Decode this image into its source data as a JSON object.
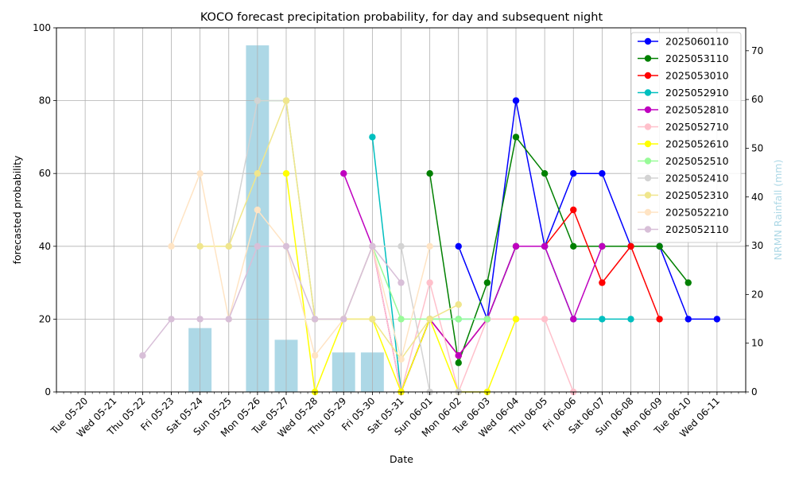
{
  "chart_data": {
    "type": "line",
    "title": "KOCO forecast precipitation probability, for day and subsequent night",
    "xlabel": "Date",
    "ylabel": "forecasted probability",
    "y2label": "NRMN Rainfall (mm)",
    "ylim": [
      0,
      100
    ],
    "y2lim": [
      0,
      74.7
    ],
    "yticks": [
      0,
      20,
      40,
      60,
      80,
      100
    ],
    "y2ticks": [
      0,
      10,
      20,
      30,
      40,
      50,
      60,
      70
    ],
    "x_range": [
      "2025-05-19",
      "2025-06-12"
    ],
    "x_ticks": [
      {
        "date": "2025-05-20",
        "label": "Tue 05-20"
      },
      {
        "date": "2025-05-21",
        "label": "Wed 05-21"
      },
      {
        "date": "2025-05-22",
        "label": "Thu 05-22"
      },
      {
        "date": "2025-05-23",
        "label": "Fri 05-23"
      },
      {
        "date": "2025-05-24",
        "label": "Sat 05-24"
      },
      {
        "date": "2025-05-25",
        "label": "Sun 05-25"
      },
      {
        "date": "2025-05-26",
        "label": "Mon 05-26"
      },
      {
        "date": "2025-05-27",
        "label": "Tue 05-27"
      },
      {
        "date": "2025-05-28",
        "label": "Wed 05-28"
      },
      {
        "date": "2025-05-29",
        "label": "Thu 05-29"
      },
      {
        "date": "2025-05-30",
        "label": "Fri 05-30"
      },
      {
        "date": "2025-05-31",
        "label": "Sat 05-31"
      },
      {
        "date": "2025-06-01",
        "label": "Sun 06-01"
      },
      {
        "date": "2025-06-02",
        "label": "Mon 06-02"
      },
      {
        "date": "2025-06-03",
        "label": "Tue 06-03"
      },
      {
        "date": "2025-06-04",
        "label": "Wed 06-04"
      },
      {
        "date": "2025-06-05",
        "label": "Thu 06-05"
      },
      {
        "date": "2025-06-06",
        "label": "Fri 06-06"
      },
      {
        "date": "2025-06-07",
        "label": "Sat 06-07"
      },
      {
        "date": "2025-06-08",
        "label": "Sun 06-08"
      },
      {
        "date": "2025-06-09",
        "label": "Mon 06-09"
      },
      {
        "date": "2025-06-10",
        "label": "Tue 06-10"
      },
      {
        "date": "2025-06-11",
        "label": "Wed 06-11"
      }
    ],
    "grid": true,
    "legend_position": "top-right",
    "rainfall_bars": {
      "color": "#add8e6",
      "dates": [
        "2025-05-24",
        "2025-05-26",
        "2025-05-27",
        "2025-05-29",
        "2025-05-30"
      ],
      "values": [
        13.1,
        71.1,
        10.7,
        8.1,
        8.1
      ]
    },
    "series": [
      {
        "name": "2025060110",
        "color": "#0000ff",
        "dates": [
          "2025-06-02",
          "2025-06-03",
          "2025-06-04",
          "2025-06-05",
          "2025-06-06",
          "2025-06-07",
          "2025-06-08",
          "2025-06-09",
          "2025-06-10",
          "2025-06-11"
        ],
        "values": [
          40,
          20,
          80,
          40,
          60,
          60,
          40,
          40,
          20,
          20
        ]
      },
      {
        "name": "2025053110",
        "color": "#008000",
        "dates": [
          "2025-06-01",
          "2025-06-02",
          "2025-06-03",
          "2025-06-04",
          "2025-06-05",
          "2025-06-06",
          "2025-06-07",
          "2025-06-08",
          "2025-06-09",
          "2025-06-10"
        ],
        "values": [
          60,
          8,
          30,
          70,
          60,
          40,
          40,
          40,
          40,
          30
        ]
      },
      {
        "name": "2025053010",
        "color": "#ff0000",
        "dates": [
          "2025-05-31",
          "2025-06-01",
          "2025-06-02",
          "2025-06-03",
          "2025-06-04",
          "2025-06-05",
          "2025-06-06",
          "2025-06-07",
          "2025-06-08",
          "2025-06-09"
        ],
        "values": [
          0,
          20,
          10,
          20,
          40,
          40,
          50,
          30,
          40,
          20
        ]
      },
      {
        "name": "2025052910",
        "color": "#00bfbf",
        "dates": [
          "2025-05-30",
          "2025-05-31",
          "2025-06-01",
          "2025-06-02",
          "2025-06-03",
          "2025-06-04",
          "2025-06-05",
          "2025-06-06",
          "2025-06-07",
          "2025-06-08"
        ],
        "values": [
          70,
          0,
          20,
          20,
          20,
          40,
          40,
          20,
          20,
          20
        ]
      },
      {
        "name": "2025052810",
        "color": "#bf00bf",
        "dates": [
          "2025-05-29",
          "2025-05-30",
          "2025-05-31",
          "2025-06-01",
          "2025-06-02",
          "2025-06-03",
          "2025-06-04",
          "2025-06-05",
          "2025-06-06",
          "2025-06-07"
        ],
        "values": [
          60,
          40,
          0,
          20,
          10,
          20,
          40,
          40,
          20,
          40
        ]
      },
      {
        "name": "2025052710",
        "color": "#ffc0cb",
        "dates": [
          "2025-05-28",
          "2025-05-29",
          "2025-05-30",
          "2025-05-31",
          "2025-06-01",
          "2025-06-02",
          "2025-06-03",
          "2025-06-04",
          "2025-06-05",
          "2025-06-06"
        ],
        "values": [
          20,
          20,
          40,
          0,
          30,
          0,
          20,
          20,
          20,
          0
        ]
      },
      {
        "name": "2025052610",
        "color": "#ffff00",
        "dates": [
          "2025-05-27",
          "2025-05-28",
          "2025-05-29",
          "2025-05-30",
          "2025-05-31",
          "2025-06-01",
          "2025-06-02",
          "2025-06-03",
          "2025-06-04"
        ],
        "values": [
          60,
          0,
          20,
          20,
          0,
          20,
          0,
          0,
          20
        ]
      },
      {
        "name": "2025052510",
        "color": "#98fb98",
        "dates": [
          "2025-05-26",
          "2025-05-27",
          "2025-05-28",
          "2025-05-29",
          "2025-05-30",
          "2025-05-31",
          "2025-06-01",
          "2025-06-02",
          "2025-06-03"
        ],
        "values": [
          80,
          80,
          20,
          20,
          40,
          20,
          20,
          20,
          20
        ]
      },
      {
        "name": "2025052410",
        "color": "#d3d3d3",
        "dates": [
          "2025-05-25",
          "2025-05-26",
          "2025-05-27",
          "2025-05-28",
          "2025-05-29",
          "2025-05-30",
          "2025-05-31",
          "2025-06-01",
          "2025-06-02"
        ],
        "values": [
          40,
          80,
          80,
          20,
          20,
          40,
          40,
          0,
          0
        ]
      },
      {
        "name": "2025052310",
        "color": "#f0e68c",
        "dates": [
          "2025-05-24",
          "2025-05-25",
          "2025-05-26",
          "2025-05-27",
          "2025-05-28",
          "2025-05-29",
          "2025-05-30",
          "2025-05-31",
          "2025-06-01",
          "2025-06-02"
        ],
        "values": [
          40,
          40,
          60,
          80,
          20,
          20,
          20,
          9,
          20,
          24
        ]
      },
      {
        "name": "2025052210",
        "color": "#ffe4c4",
        "dates": [
          "2025-05-23",
          "2025-05-24",
          "2025-05-25",
          "2025-05-26",
          "2025-05-27",
          "2025-05-28",
          "2025-05-29",
          "2025-05-30",
          "2025-05-31",
          "2025-06-01"
        ],
        "values": [
          40,
          60,
          20,
          50,
          40,
          10,
          20,
          40,
          9,
          40
        ]
      },
      {
        "name": "2025052110",
        "color": "#d8bfd8",
        "dates": [
          "2025-05-22",
          "2025-05-23",
          "2025-05-24",
          "2025-05-25",
          "2025-05-26",
          "2025-05-27",
          "2025-05-28",
          "2025-05-29",
          "2025-05-30",
          "2025-05-31"
        ],
        "values": [
          10,
          20,
          20,
          20,
          40,
          40,
          20,
          20,
          40,
          30
        ]
      }
    ]
  }
}
